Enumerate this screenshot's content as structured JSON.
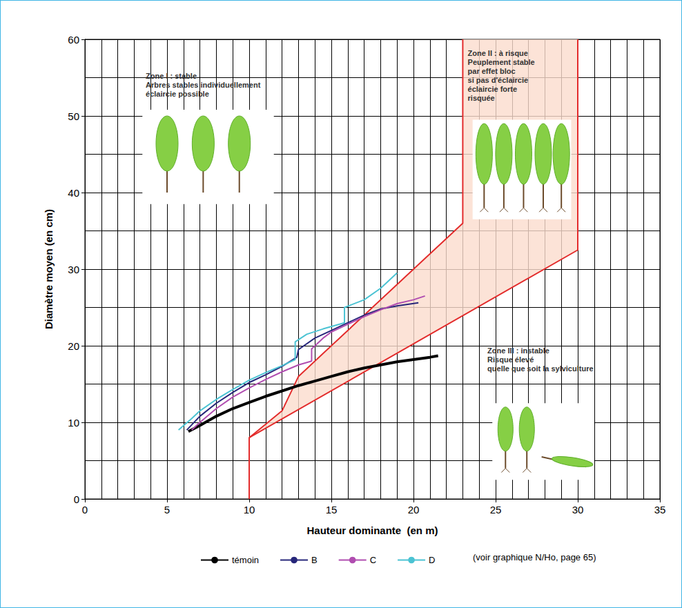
{
  "chart_data": {
    "type": "line",
    "xlabel": "Hauteur dominante  (en m)",
    "ylabel": "Diamètre moyen (en cm)",
    "xlim": [
      0,
      35
    ],
    "ylim": [
      0,
      60
    ],
    "xticks": [
      0,
      5,
      10,
      15,
      20,
      25,
      30,
      35
    ],
    "yticks": [
      0,
      10,
      20,
      30,
      40,
      50,
      60
    ],
    "grid": true,
    "legend": "bottom",
    "series": [
      {
        "name": "témoin",
        "color": "#000000",
        "line_style": "thick",
        "x": [
          6.3,
          7,
          8,
          9,
          10,
          11,
          12,
          13,
          14,
          15,
          16,
          17,
          18,
          19,
          20,
          21,
          21.5
        ],
        "values": [
          8.8,
          9.6,
          10.8,
          11.8,
          12.6,
          13.4,
          14.1,
          14.8,
          15.4,
          16,
          16.6,
          17.1,
          17.5,
          17.9,
          18.2,
          18.5,
          18.7
        ]
      },
      {
        "name": "B",
        "color": "#26267a",
        "line_style": "solid",
        "x": [
          6.2,
          7,
          8,
          9,
          10,
          11,
          12,
          12.9,
          13,
          14,
          15,
          16,
          17,
          18,
          19,
          20.3
        ],
        "values": [
          9,
          10.8,
          12.5,
          13.9,
          15.2,
          16.2,
          17.3,
          18.5,
          19.5,
          21,
          22,
          23,
          24,
          24.8,
          25.2,
          25.6
        ]
      },
      {
        "name": "C",
        "color": "#b04db0",
        "line_style": "solid",
        "x": [
          6.5,
          7,
          8,
          9,
          10,
          11,
          12,
          13,
          13.8,
          13.8,
          14.5,
          15,
          16,
          17,
          18,
          19,
          20,
          20.7
        ],
        "values": [
          9,
          10,
          11.8,
          13.3,
          14.5,
          15.6,
          16.6,
          17.5,
          18,
          19.6,
          21,
          21.8,
          22.8,
          23.8,
          24.7,
          25.5,
          26,
          26.5
        ]
      },
      {
        "name": "D",
        "color": "#4bc3d3",
        "line_style": "solid",
        "x": [
          5.7,
          6.5,
          7,
          8,
          9,
          10,
          11,
          12,
          12.8,
          12.8,
          13.5,
          14.5,
          15.8,
          15.8,
          17,
          18,
          19
        ],
        "values": [
          9,
          10.5,
          11.5,
          13,
          14.3,
          15.5,
          16.5,
          17.4,
          18.2,
          20.5,
          21.5,
          22.2,
          23,
          25,
          26,
          27.5,
          29.5
        ]
      }
    ],
    "zone_boundaries": [
      {
        "color": "#e32b2b",
        "x": [
          10,
          10,
          12,
          13,
          23,
          23
        ],
        "values": [
          0,
          8,
          11.5,
          16,
          36,
          60
        ]
      },
      {
        "color": "#e32b2b",
        "x": [
          10,
          30,
          30
        ],
        "values": [
          8,
          32.5,
          60
        ]
      }
    ],
    "zone_fill": {
      "color": "#fbdccd",
      "x": [
        10,
        12,
        13,
        23,
        23,
        30,
        30
      ],
      "values": [
        8,
        11.5,
        16,
        36,
        60,
        60,
        32.5
      ]
    },
    "annotations": [
      [
        "Zone I : stable",
        "Arbres stables individuellement",
        "éclaircie possible"
      ],
      [
        "Zone II : à risque",
        "Peuplement stable",
        "par effet bloc",
        "si pas d'éclaircie",
        "éclaircie forte",
        "risquée"
      ],
      [
        "Zone III : instable",
        "Risque élevé",
        "quelle que soit la sylviculture"
      ]
    ],
    "note": "(voir graphique N/Ho, page 65)"
  }
}
